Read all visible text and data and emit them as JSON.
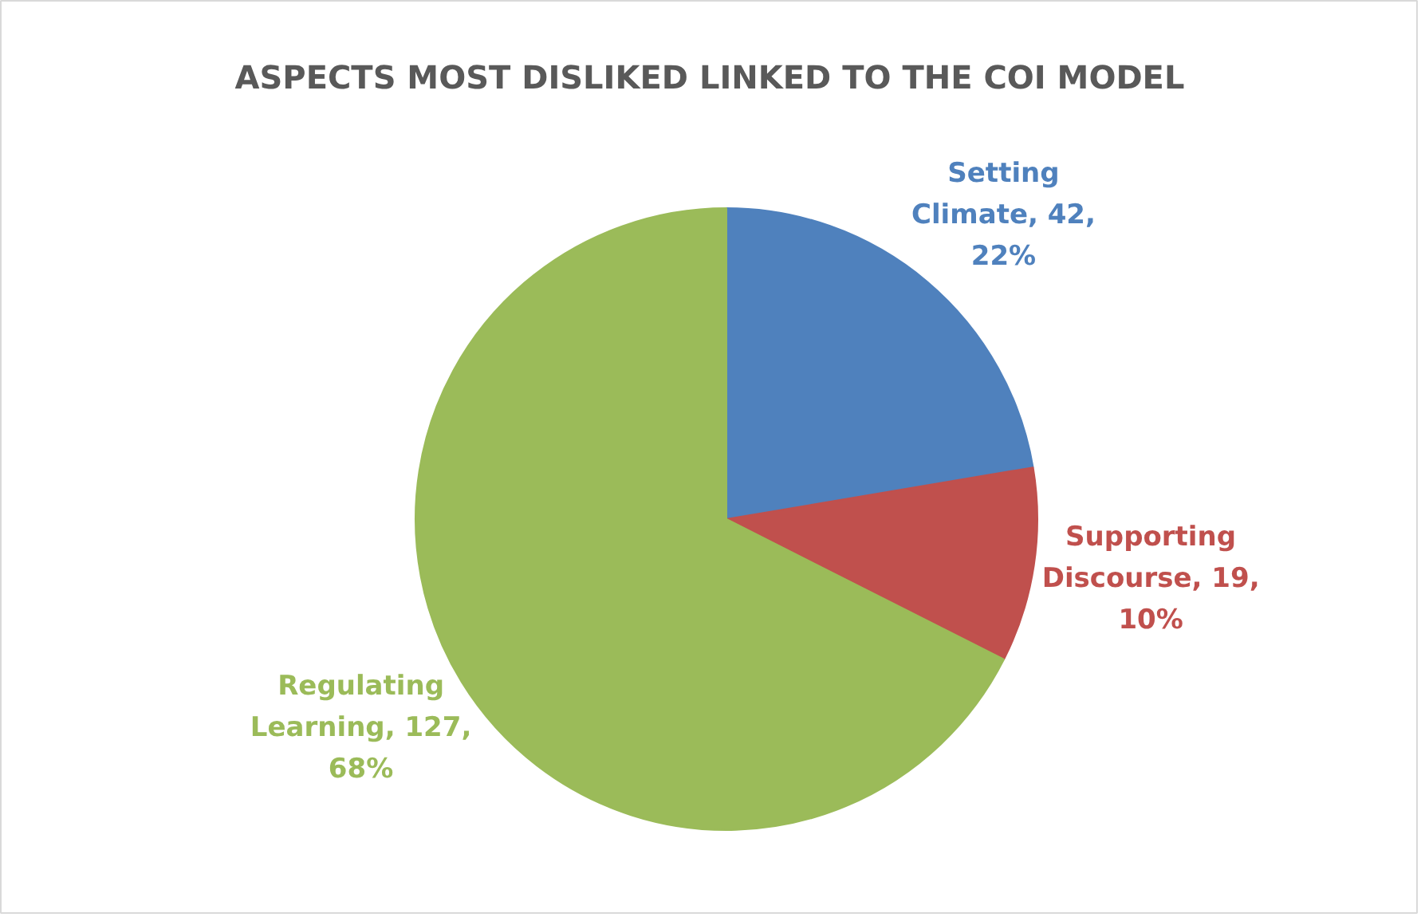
{
  "chart_data": {
    "type": "pie",
    "title": "ASPECTS MOST DISLIKED LINKED TO THE COI MODEL",
    "categories": [
      "Setting Climate",
      "Supporting Discourse",
      "Regulating Learning"
    ],
    "values": [
      42,
      19,
      127
    ],
    "colors": [
      "#4f81bd",
      "#c0504d",
      "#9bbb59"
    ],
    "value_labels": [
      "42, 22%",
      "19, 10%",
      "127, 68%"
    ]
  }
}
